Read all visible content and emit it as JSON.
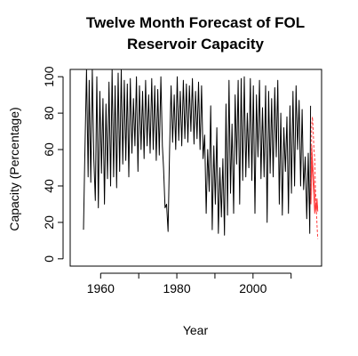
{
  "chart_data": {
    "type": "line",
    "title": [
      "Twelve Month Forecast of FOL",
      "Reservoir Capacity"
    ],
    "xlabel": "Year",
    "ylabel": "Capacity (Percentage)",
    "xlim": [
      1952,
      2018
    ],
    "ylim": [
      -4,
      104
    ],
    "xticks": [
      {
        "value": 1960,
        "label": "1960"
      },
      {
        "value": 1970,
        "label": ""
      },
      {
        "value": 1980,
        "label": "1980"
      },
      {
        "value": 1990,
        "label": ""
      },
      {
        "value": 2000,
        "label": "2000"
      },
      {
        "value": 2010,
        "label": ""
      }
    ],
    "yticks": [
      {
        "value": 0,
        "label": "0"
      },
      {
        "value": 20,
        "label": "20"
      },
      {
        "value": 40,
        "label": "40"
      },
      {
        "value": 60,
        "label": "60"
      },
      {
        "value": 80,
        "label": "80"
      },
      {
        "value": 100,
        "label": "100"
      }
    ],
    "grid": false,
    "colors": {
      "observed": "#000000",
      "forecast": "#ff3b3b",
      "bounds": "#ff3b3b"
    },
    "series": [
      {
        "key": "observed",
        "style": "solid",
        "x": [
          1955.5,
          1955.8,
          1956.3,
          1956.7,
          1957.0,
          1957.4,
          1957.8,
          1958.2,
          1958.6,
          1959.0,
          1959.4,
          1959.8,
          1960.2,
          1960.6,
          1961.0,
          1961.4,
          1961.8,
          1962.2,
          1962.6,
          1963.0,
          1963.4,
          1963.8,
          1964.2,
          1964.6,
          1965.0,
          1965.4,
          1965.8,
          1966.2,
          1966.6,
          1967.0,
          1967.4,
          1967.8,
          1968.2,
          1968.6,
          1969.0,
          1969.4,
          1969.8,
          1970.2,
          1970.6,
          1971.0,
          1971.4,
          1971.8,
          1972.2,
          1972.6,
          1973.0,
          1973.4,
          1973.8,
          1974.2,
          1974.6,
          1975.0,
          1975.4,
          1975.8,
          1976.2,
          1976.5,
          1976.9,
          1977.3,
          1977.7,
          1978.1,
          1978.5,
          1978.9,
          1979.3,
          1979.7,
          1980.1,
          1980.5,
          1980.9,
          1981.3,
          1981.7,
          1982.1,
          1982.5,
          1982.9,
          1983.3,
          1983.7,
          1984.1,
          1984.5,
          1984.9,
          1985.3,
          1985.7,
          1986.1,
          1986.5,
          1986.9,
          1987.3,
          1987.7,
          1988.1,
          1988.5,
          1988.9,
          1989.3,
          1989.7,
          1990.1,
          1990.5,
          1990.9,
          1991.3,
          1991.7,
          1992.1,
          1992.5,
          1992.9,
          1993.3,
          1993.7,
          1994.1,
          1994.5,
          1994.9,
          1995.3,
          1995.7,
          1996.1,
          1996.5,
          1996.9,
          1997.3,
          1997.7,
          1998.1,
          1998.5,
          1998.9,
          1999.3,
          1999.7,
          2000.1,
          2000.5,
          2000.9,
          2001.3,
          2001.7,
          2002.1,
          2002.5,
          2002.9,
          2003.3,
          2003.7,
          2004.1,
          2004.5,
          2004.9,
          2005.3,
          2005.7,
          2006.1,
          2006.5,
          2006.9,
          2007.3,
          2007.7,
          2008.1,
          2008.5,
          2008.9,
          2009.3,
          2009.7,
          2010.1,
          2010.5,
          2010.9,
          2011.3,
          2011.7,
          2012.1,
          2012.5,
          2012.9,
          2013.3,
          2013.7,
          2014.1,
          2014.5,
          2014.9,
          2015.1
        ],
        "y": [
          16,
          52,
          104,
          45,
          98,
          42,
          104,
          55,
          32,
          100,
          28,
          92,
          47,
          88,
          30,
          85,
          44,
          97,
          40,
          104,
          45,
          95,
          39,
          102,
          48,
          104,
          52,
          98,
          54,
          96,
          45,
          99,
          58,
          88,
          62,
          100,
          48,
          95,
          60,
          92,
          55,
          98,
          62,
          90,
          58,
          99,
          60,
          95,
          54,
          93,
          57,
          100,
          62,
          50,
          28,
          30,
          15,
          60,
          95,
          64,
          90,
          60,
          100,
          65,
          92,
          62,
          98,
          66,
          96,
          64,
          95,
          70,
          99,
          63,
          92,
          66,
          97,
          60,
          95,
          55,
          68,
          25,
          60,
          37,
          84,
          16,
          62,
          30,
          72,
          14,
          50,
          23,
          55,
          13,
          85,
          24,
          98,
          36,
          74,
          25,
          90,
          52,
          98,
          30,
          99,
          43,
          100,
          45,
          80,
          50,
          99,
          43,
          95,
          25,
          90,
          56,
          98,
          44,
          83,
          45,
          95,
          20,
          92,
          47,
          88,
          45,
          94,
          56,
          98,
          30,
          80,
          24,
          72,
          48,
          78,
          25,
          84,
          36,
          92,
          40,
          95,
          60,
          87,
          40,
          82,
          38,
          56,
          22,
          58,
          14,
          84
        ]
      },
      {
        "key": "bounds",
        "style": "dashed",
        "x": [
          2015.2,
          2015.4,
          2015.6,
          2015.8,
          2016.0,
          2016.2,
          2016.4,
          2016.6,
          2016.8,
          2017.0
        ],
        "y": [
          30,
          74,
          78,
          70,
          60,
          55,
          38,
          29,
          18,
          11
        ]
      },
      {
        "key": "forecast",
        "style": "solid",
        "x": [
          2015.2,
          2015.4,
          2015.6,
          2015.8,
          2016.0,
          2016.2,
          2016.4,
          2016.6,
          2016.8,
          2017.0
        ],
        "y": [
          30,
          62,
          55,
          48,
          42,
          36,
          30,
          26,
          30,
          28
        ]
      },
      {
        "key": "forecast",
        "style": "solid",
        "x": [
          2015.2,
          2015.4,
          2015.6,
          2015.8,
          2016.0,
          2016.2,
          2016.4,
          2016.6,
          2016.8,
          2017.0
        ],
        "y": [
          30,
          56,
          48,
          40,
          33,
          25,
          31,
          27,
          33,
          26
        ]
      }
    ]
  }
}
